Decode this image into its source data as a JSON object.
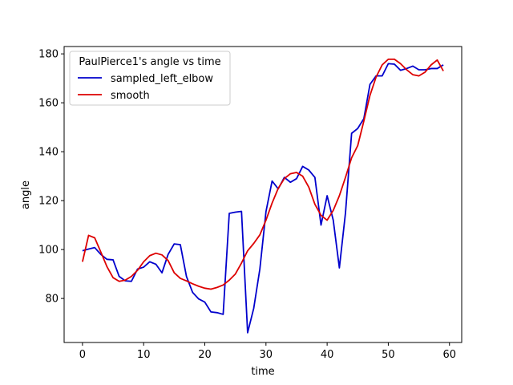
{
  "chart_data": {
    "type": "line",
    "title": "",
    "xlabel": "time",
    "ylabel": "angle",
    "xlim": [
      -3,
      62
    ],
    "ylim": [
      62,
      183
    ],
    "xticks": [
      0,
      10,
      20,
      30,
      40,
      50,
      60
    ],
    "yticks": [
      80,
      100,
      120,
      140,
      160,
      180
    ],
    "grid": false,
    "legend": {
      "title": "PaulPierce1's angle vs time",
      "placement": "top-left"
    },
    "x": [
      0,
      1,
      2,
      3,
      4,
      5,
      6,
      7,
      8,
      9,
      10,
      11,
      12,
      13,
      14,
      15,
      16,
      17,
      18,
      19,
      20,
      21,
      22,
      23,
      24,
      25,
      26,
      27,
      28,
      29,
      30,
      31,
      32,
      33,
      34,
      35,
      36,
      37,
      38,
      39,
      40,
      41,
      42,
      43,
      44,
      45,
      46,
      47,
      48,
      49,
      50,
      51,
      52,
      53,
      54,
      55,
      56,
      57,
      58,
      59
    ],
    "series": [
      {
        "name": "sampled_left_elbow",
        "color": "#0000cc",
        "values": [
          99.5,
          100.2,
          100.8,
          98.0,
          96.0,
          95.8,
          89.0,
          87.2,
          87.0,
          92.0,
          92.8,
          95.0,
          94.0,
          90.5,
          98.0,
          102.3,
          102.0,
          89.0,
          82.5,
          79.8,
          78.5,
          74.5,
          74.2,
          73.5,
          114.8,
          115.3,
          115.6,
          66.0,
          76.0,
          92.0,
          115.5,
          128.0,
          124.8,
          129.5,
          127.5,
          129.0,
          134.0,
          132.5,
          129.5,
          110.0,
          122.0,
          112.0,
          92.5,
          115.0,
          147.5,
          149.5,
          153.5,
          167.5,
          171.0,
          171.0,
          176.0,
          175.8,
          173.3,
          174.0,
          175.0,
          173.5,
          173.5,
          174.0,
          174.0,
          175.5
        ]
      },
      {
        "name": "smooth",
        "color": "#dd0000",
        "values": [
          95.0,
          105.8,
          104.8,
          99.0,
          93.0,
          88.5,
          87.0,
          87.5,
          89.0,
          91.5,
          95.0,
          97.5,
          98.5,
          97.8,
          95.5,
          90.5,
          88.2,
          87.2,
          86.0,
          85.0,
          84.2,
          83.8,
          84.5,
          85.5,
          87.5,
          90.0,
          94.5,
          99.5,
          102.5,
          106.0,
          112.0,
          119.0,
          125.0,
          129.0,
          131.0,
          131.5,
          130.0,
          125.5,
          118.5,
          114.0,
          112.0,
          116.0,
          122.0,
          129.5,
          137.5,
          142.5,
          152.5,
          163.0,
          170.5,
          175.5,
          177.8,
          177.8,
          176.0,
          173.5,
          171.5,
          171.0,
          172.5,
          175.5,
          177.5,
          173.0
        ]
      }
    ]
  }
}
